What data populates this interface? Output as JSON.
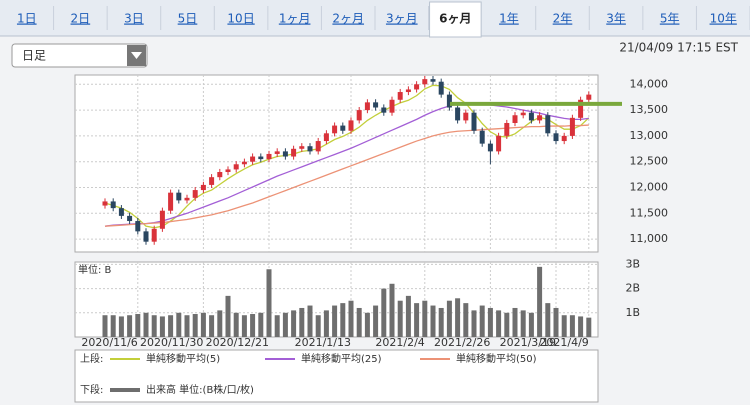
{
  "tabs": [
    "1日",
    "2日",
    "3日",
    "5日",
    "10日",
    "1ヶ月",
    "2ヶ月",
    "3ヶ月",
    "6ヶ月",
    "1年",
    "2年",
    "3年",
    "5年",
    "10年"
  ],
  "active_tab": 8,
  "dropdown": "日足",
  "timestamp": "21/04/09 17:15 EST",
  "chart_data": {
    "type": "candlestick",
    "categories": [
      null,
      null,
      null,
      null,
      "2020/11/6",
      null,
      null,
      null,
      null,
      null,
      null,
      null,
      "2020/11/30",
      null,
      null,
      null,
      null,
      null,
      null,
      null,
      "2020/12/21",
      null,
      null,
      null,
      null,
      null,
      null,
      null,
      null,
      null,
      "2021/1/13",
      null,
      null,
      null,
      null,
      null,
      null,
      null,
      null,
      "2021/2/4",
      null,
      null,
      null,
      null,
      null,
      null,
      null,
      "2021/2/26",
      null,
      null,
      null,
      null,
      null,
      null,
      null,
      "2021/3/19",
      null,
      null,
      null,
      "2021/4/9"
    ],
    "open": [
      11650,
      11730,
      11600,
      11450,
      11350,
      11150,
      10950,
      11200,
      11550,
      11900,
      11750,
      11800,
      11950,
      12050,
      12200,
      12300,
      12350,
      12450,
      12500,
      12600,
      12550,
      12650,
      12700,
      12600,
      12750,
      12800,
      12700,
      12900,
      13050,
      13200,
      13100,
      13300,
      13500,
      13650,
      13550,
      13450,
      13700,
      13850,
      13900,
      14000,
      14100,
      14050,
      13800,
      13550,
      13300,
      13450,
      13100,
      12850,
      12700,
      13000,
      13250,
      13400,
      13450,
      13300,
      13400,
      13050,
      12900,
      13000,
      13350,
      13700
    ],
    "high": [
      11790,
      11790,
      11660,
      11510,
      11410,
      11210,
      11260,
      11610,
      11960,
      11960,
      11860,
      12010,
      12110,
      12260,
      12360,
      12410,
      12510,
      12560,
      12660,
      12660,
      12710,
      12760,
      12760,
      12810,
      12860,
      12860,
      12960,
      13110,
      13260,
      13260,
      13360,
      13560,
      13710,
      13710,
      13610,
      13760,
      13910,
      13960,
      14060,
      14160,
      14160,
      14110,
      13860,
      13610,
      13510,
      13510,
      13160,
      12910,
      13060,
      13310,
      13460,
      13510,
      13510,
      13460,
      13460,
      13110,
      13060,
      13410,
      13760,
      13860
    ],
    "low": [
      11590,
      11540,
      11390,
      11290,
      11090,
      10890,
      10890,
      11140,
      11490,
      11690,
      11690,
      11740,
      11890,
      11990,
      12140,
      12240,
      12290,
      12390,
      12440,
      12490,
      12490,
      12590,
      12540,
      12540,
      12690,
      12640,
      12640,
      12840,
      12990,
      13040,
      13040,
      13240,
      13440,
      13490,
      13390,
      13390,
      13640,
      13790,
      13840,
      13940,
      13990,
      13740,
      13490,
      13240,
      13240,
      13040,
      12790,
      12450,
      12640,
      12940,
      13190,
      13340,
      13240,
      13240,
      12990,
      12840,
      12840,
      12940,
      13290,
      13640
    ],
    "close": [
      11730,
      11600,
      11450,
      11350,
      11150,
      10950,
      11200,
      11550,
      11900,
      11750,
      11800,
      11950,
      12050,
      12200,
      12300,
      12350,
      12450,
      12500,
      12600,
      12550,
      12650,
      12700,
      12600,
      12750,
      12800,
      12700,
      12900,
      13050,
      13200,
      13100,
      13300,
      13500,
      13650,
      13550,
      13450,
      13700,
      13850,
      13900,
      14000,
      14100,
      14050,
      13800,
      13550,
      13300,
      13450,
      13100,
      12850,
      12700,
      13000,
      13250,
      13400,
      13450,
      13300,
      13400,
      13050,
      12900,
      13000,
      13350,
      13700,
      13800
    ],
    "up_color": "#d9323a",
    "down_color": "#2a4660",
    "ylim": [
      10750,
      14180
    ],
    "yticks": [
      {
        "value": 11000,
        "label": "11,000"
      },
      {
        "value": 11500,
        "label": "11,500"
      },
      {
        "value": 12000,
        "label": "12,000"
      },
      {
        "value": 12500,
        "label": "12,500"
      },
      {
        "value": 13000,
        "label": "13,000"
      },
      {
        "value": 13500,
        "label": "13,500"
      },
      {
        "value": 14000,
        "label": "14,000"
      }
    ],
    "grid": true,
    "horizontal_line": {
      "value": 13620,
      "color": "#7aa83c"
    },
    "upper_label": "上段:",
    "series": [
      {
        "name": "単純移動平均(5)",
        "color": "#c3cf3a",
        "values": [
          11700,
          11650,
          11600,
          11520,
          11400,
          11250,
          11220,
          11250,
          11350,
          11470,
          11640,
          11790,
          11890,
          11950,
          12060,
          12170,
          12270,
          12360,
          12440,
          12490,
          12550,
          12600,
          12620,
          12650,
          12700,
          12720,
          12750,
          12840,
          12930,
          12990,
          13070,
          13170,
          13300,
          13400,
          13490,
          13570,
          13640,
          13690,
          13780,
          13910,
          13980,
          13970,
          13900,
          13740,
          13630,
          13440,
          13240,
          13080,
          12990,
          12980,
          13040,
          13160,
          13280,
          13360,
          13320,
          13220,
          13130,
          13130,
          13200,
          13350
        ]
      },
      {
        "name": "単純移動平均(25)",
        "color": "#a35fd6",
        "values": [
          11250,
          11270,
          11280,
          11290,
          11300,
          11300,
          11320,
          11350,
          11400,
          11450,
          11500,
          11560,
          11620,
          11680,
          11740,
          11800,
          11870,
          11940,
          12010,
          12080,
          12150,
          12220,
          12280,
          12340,
          12400,
          12460,
          12520,
          12580,
          12640,
          12700,
          12760,
          12830,
          12900,
          12970,
          13040,
          13110,
          13180,
          13250,
          13320,
          13400,
          13470,
          13530,
          13580,
          13620,
          13640,
          13640,
          13620,
          13600,
          13580,
          13560,
          13530,
          13500,
          13470,
          13440,
          13400,
          13370,
          13340,
          13320,
          13320,
          13340
        ]
      },
      {
        "name": "単純移動平均(50)",
        "color": "#ec9276",
        "values": [
          11250,
          11260,
          11270,
          11280,
          11290,
          11300,
          11310,
          11320,
          11340,
          11360,
          11380,
          11410,
          11440,
          11470,
          11510,
          11550,
          11600,
          11650,
          11700,
          11760,
          11820,
          11880,
          11940,
          12000,
          12060,
          12120,
          12180,
          12240,
          12300,
          12360,
          12420,
          12480,
          12540,
          12600,
          12660,
          12720,
          12780,
          12840,
          12900,
          12950,
          13000,
          13040,
          13070,
          13090,
          13100,
          13110,
          13120,
          13130,
          13140,
          13150,
          13160,
          13170,
          13180,
          13180,
          13190,
          13190,
          13190,
          13200,
          13200,
          13210
        ]
      }
    ],
    "volume": {
      "unit_label": "単位: B",
      "lower_label": "下段:",
      "name": "出来高 単位:(B株/口/枚)",
      "color": "#6e6e6e",
      "ylim": [
        0,
        3.1
      ],
      "yticks": [
        {
          "value": 1,
          "label": "1B"
        },
        {
          "value": 2,
          "label": "2B"
        },
        {
          "value": 3,
          "label": "3B"
        }
      ],
      "values": [
        0.9,
        0.9,
        0.85,
        0.9,
        0.95,
        1.0,
        0.9,
        0.85,
        0.9,
        1.0,
        0.9,
        0.95,
        1.0,
        0.9,
        1.1,
        1.7,
        1.0,
        0.9,
        0.95,
        1.0,
        2.8,
        0.9,
        1.0,
        1.1,
        1.2,
        1.3,
        0.9,
        1.1,
        1.3,
        1.4,
        1.5,
        1.2,
        1.0,
        1.3,
        2.0,
        2.2,
        1.5,
        1.7,
        1.4,
        1.5,
        1.3,
        1.2,
        1.5,
        1.6,
        1.4,
        1.1,
        1.3,
        1.2,
        1.1,
        1.0,
        1.2,
        1.1,
        1.0,
        2.9,
        1.4,
        1.2,
        0.9,
        0.9,
        0.85,
        0.8
      ]
    }
  }
}
